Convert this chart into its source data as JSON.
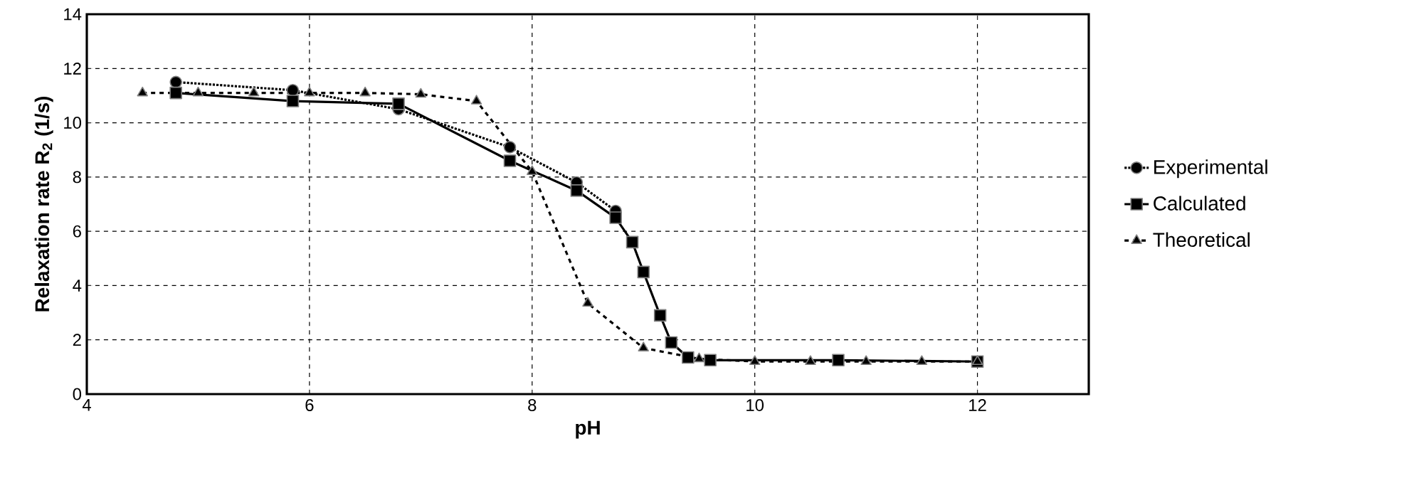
{
  "chart_data": {
    "type": "line",
    "xlabel": "pH",
    "ylabel": "Relaxation rate R$_{2}$ (1/s)",
    "xlim": [
      4,
      13
    ],
    "xticks": [
      4,
      6,
      8,
      10,
      12
    ],
    "ylim": [
      0,
      14
    ],
    "yticks": [
      0,
      2,
      4,
      6,
      8,
      10,
      12,
      14
    ],
    "grid": true,
    "legend": "right",
    "series": [
      {
        "name": "Experimental",
        "color": "#000000",
        "marker": "circle",
        "line_style": "dotted",
        "x": [
          4.8,
          5.85,
          6.8,
          7.8,
          8.4,
          8.75
        ],
        "values": [
          11.5,
          11.2,
          10.5,
          9.1,
          7.8,
          6.75
        ]
      },
      {
        "name": "Calculated",
        "color": "#000000",
        "marker": "square",
        "line_style": "solid",
        "x": [
          4.8,
          5.85,
          6.8,
          7.8,
          8.4,
          8.75,
          8.9,
          9.0,
          9.15,
          9.25,
          9.4,
          9.6,
          10.75,
          12.0
        ],
        "values": [
          11.1,
          10.8,
          10.7,
          8.6,
          7.5,
          6.5,
          5.6,
          4.5,
          2.9,
          1.9,
          1.35,
          1.25,
          1.25,
          1.2
        ]
      },
      {
        "name": "Theoretical",
        "color": "#000000",
        "marker": "triangle",
        "line_style": "dashed",
        "x": [
          4.5,
          5.0,
          5.5,
          6.0,
          6.5,
          7.0,
          7.5,
          8.0,
          8.5,
          9.0,
          9.5,
          10.0,
          10.5,
          11.0,
          11.5,
          12.0
        ],
        "values": [
          11.1,
          11.1,
          11.1,
          11.1,
          11.1,
          11.05,
          10.8,
          8.2,
          3.35,
          1.7,
          1.3,
          1.2,
          1.2,
          1.2,
          1.2,
          1.2
        ]
      }
    ]
  }
}
